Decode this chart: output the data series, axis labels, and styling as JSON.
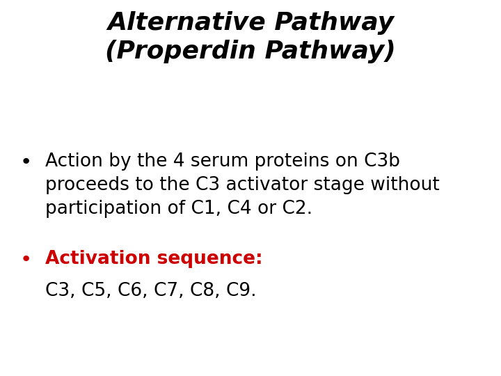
{
  "title_line1": "Alternative Pathway",
  "title_line2": "(Properdin Pathway)",
  "title_fontsize": 26,
  "title_color": "#000000",
  "title_style": "italic",
  "title_weight": "bold",
  "bullet1_text_line1": "Action by the 4 serum proteins on C3b",
  "bullet1_text_line2": "proceeds to the C3 activator stage without",
  "bullet1_text_line3": "participation of C1, C4 or C2.",
  "bullet2_red_text": "Activation sequence:",
  "bullet2_black_text": "C3, C5, C6, C7, C8, C9.",
  "bullet_color": "#000000",
  "red_color": "#cc0000",
  "black_color": "#000000",
  "body_fontsize": 19,
  "background_color": "#ffffff"
}
